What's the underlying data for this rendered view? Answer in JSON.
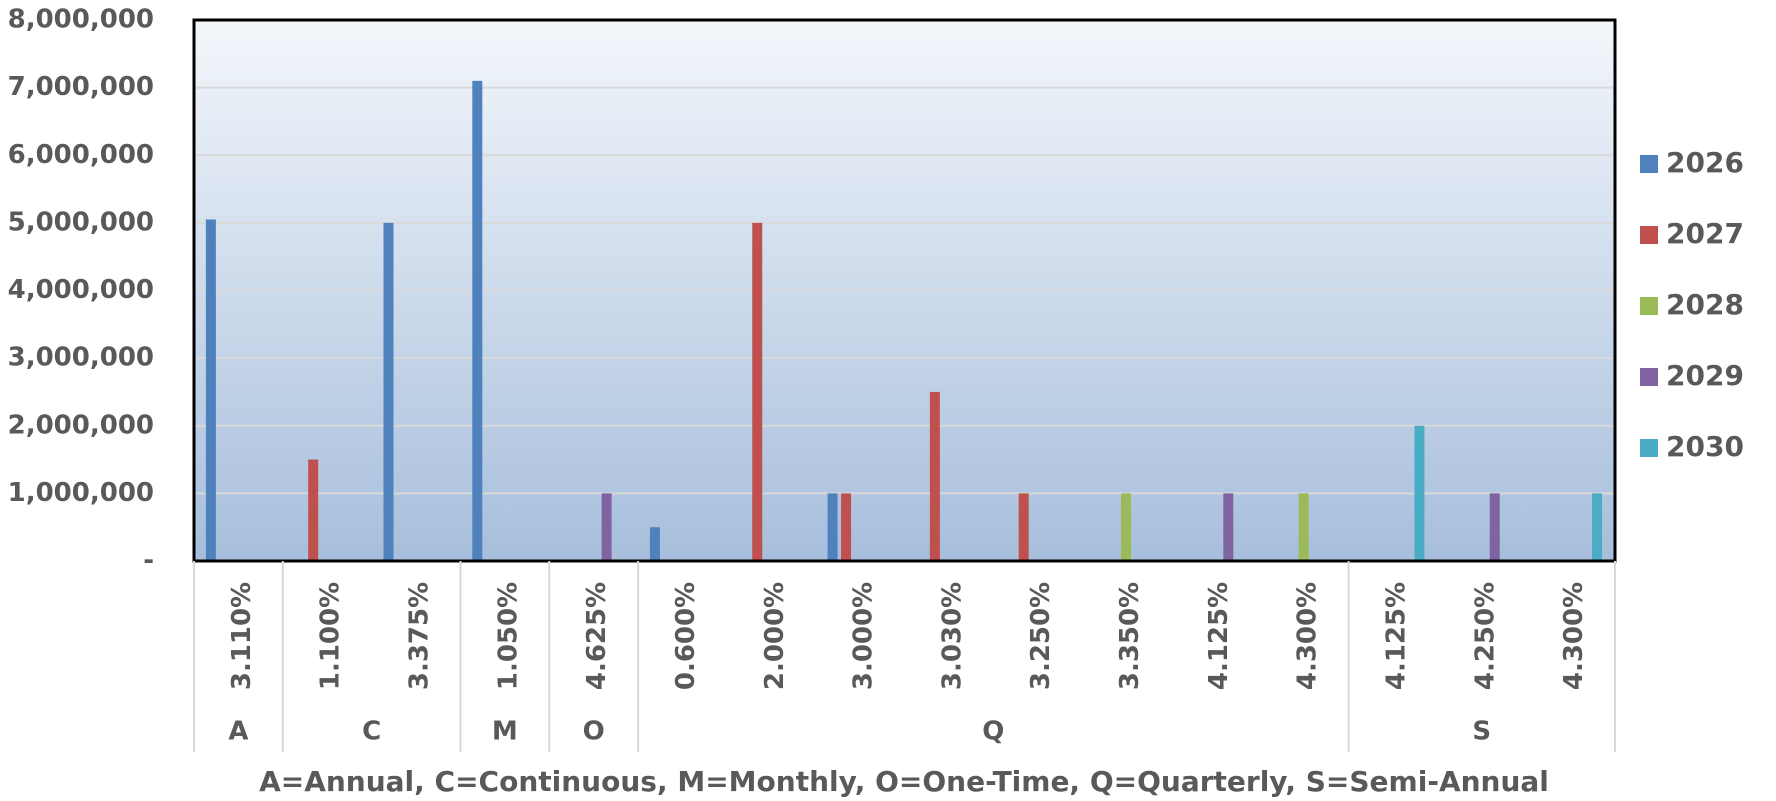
{
  "chart_data": {
    "type": "bar",
    "x_title": "A=Annual, C=Continuous, M=Monthly, O=One-Time, Q=Quarterly, S=Semi-Annual",
    "categories": [
      "3.110%",
      "1.100%",
      "3.375%",
      "1.050%",
      "4.625%",
      "0.600%",
      "2.000%",
      "3.000%",
      "3.030%",
      "3.250%",
      "3.350%",
      "4.125%",
      "4.300%",
      "4.125%",
      "4.250%",
      "4.300%"
    ],
    "category_groups": [
      "A",
      "C",
      "C",
      "M",
      "O",
      "Q",
      "Q",
      "Q",
      "Q",
      "Q",
      "Q",
      "Q",
      "Q",
      "S",
      "S",
      "S"
    ],
    "series": [
      {
        "name": "2026",
        "color": "#4f81bd",
        "values": [
          5050000,
          null,
          5000000,
          7100000,
          null,
          500000,
          null,
          1000000,
          null,
          null,
          null,
          null,
          null,
          null,
          null,
          null
        ]
      },
      {
        "name": "2027",
        "color": "#c0504d",
        "values": [
          null,
          1500000,
          null,
          null,
          null,
          null,
          5000000,
          1000000,
          2500000,
          1000000,
          null,
          null,
          null,
          null,
          null,
          null
        ]
      },
      {
        "name": "2028",
        "color": "#9bbb59",
        "values": [
          null,
          null,
          null,
          null,
          null,
          null,
          null,
          null,
          null,
          null,
          1000000,
          null,
          1000000,
          null,
          null,
          null
        ]
      },
      {
        "name": "2029",
        "color": "#8064a2",
        "values": [
          null,
          null,
          null,
          null,
          1000000,
          null,
          null,
          null,
          null,
          null,
          null,
          1000000,
          null,
          null,
          1000000,
          null
        ]
      },
      {
        "name": "2030",
        "color": "#4bacc6",
        "values": [
          null,
          null,
          null,
          null,
          null,
          null,
          null,
          null,
          null,
          null,
          null,
          null,
          null,
          2000000,
          null,
          1000000
        ]
      }
    ],
    "ylim": [
      0,
      8000000
    ],
    "yticks": [
      {
        "value": 0,
        "label": "-"
      },
      {
        "value": 1000000,
        "label": "1,000,000"
      },
      {
        "value": 2000000,
        "label": "2,000,000"
      },
      {
        "value": 3000000,
        "label": "3,000,000"
      },
      {
        "value": 4000000,
        "label": "4,000,000"
      },
      {
        "value": 5000000,
        "label": "5,000,000"
      },
      {
        "value": 6000000,
        "label": "6,000,000"
      },
      {
        "value": 7000000,
        "label": "7,000,000"
      },
      {
        "value": 8000000,
        "label": "8,000,000"
      }
    ],
    "grid": true,
    "legend": "right"
  }
}
